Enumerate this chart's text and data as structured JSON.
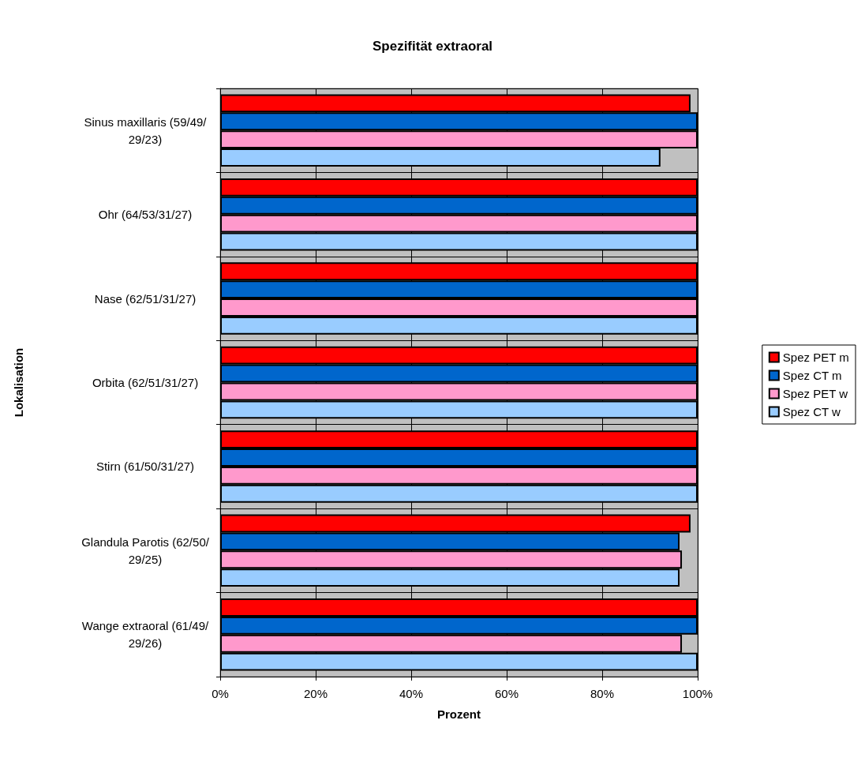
{
  "chart_data": {
    "type": "bar",
    "orientation": "horizontal",
    "title": "Spezifität extraoral",
    "xlabel": "Prozent",
    "ylabel": "Lokalisation",
    "categories": [
      "Sinus maxillaris (59/49/29/23)",
      "Ohr (64/53/31/27)",
      "Nase (62/51/31/27)",
      "Orbita (62/51/31/27)",
      "Stirn (61/50/31/27)",
      "Glandula Parotis (62/50/29/25)",
      "Wange extraoral (61/49/29/26)"
    ],
    "series": [
      {
        "name": "Spez PET m",
        "color": "#ff0000",
        "values": [
          98.5,
          100,
          100,
          100,
          100,
          98.5,
          100
        ]
      },
      {
        "name": "Spez CT m",
        "color": "#0066cc",
        "values": [
          100,
          100,
          100,
          100,
          100,
          96.2,
          100
        ]
      },
      {
        "name": "Spez PET w",
        "color": "#ff99cc",
        "values": [
          100,
          100,
          100,
          100,
          100,
          96.7,
          96.7
        ]
      },
      {
        "name": "Spez CT w",
        "color": "#99ccff",
        "values": [
          92.2,
          100,
          100,
          100,
          100,
          96.2,
          100
        ]
      }
    ],
    "xlim": [
      0,
      100
    ],
    "xticks": [
      {
        "value": 0,
        "label": "0%"
      },
      {
        "value": 20,
        "label": "20%"
      },
      {
        "value": 40,
        "label": "40%"
      },
      {
        "value": 60,
        "label": "60%"
      },
      {
        "value": 80,
        "label": "80%"
      },
      {
        "value": 100,
        "label": "100%"
      }
    ],
    "grid": true,
    "legend": "right"
  }
}
